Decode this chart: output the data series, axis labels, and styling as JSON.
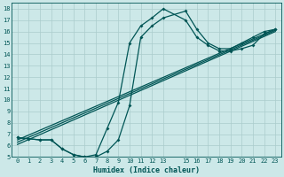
{
  "xlabel": "Humidex (Indice chaleur)",
  "bg_color": "#cce8e8",
  "grid_color": "#aacccc",
  "line_color": "#005555",
  "xlim": [
    -0.5,
    23.5
  ],
  "ylim": [
    5,
    18.5
  ],
  "xticks": [
    0,
    1,
    2,
    3,
    4,
    5,
    6,
    7,
    8,
    9,
    10,
    11,
    12,
    13,
    15,
    16,
    17,
    18,
    19,
    20,
    21,
    22,
    23
  ],
  "yticks": [
    5,
    6,
    7,
    8,
    9,
    10,
    11,
    12,
    13,
    14,
    15,
    16,
    17,
    18
  ],
  "curve1_x": [
    0,
    1,
    2,
    3,
    4,
    5,
    6,
    7,
    8,
    9,
    10,
    11,
    12,
    13,
    15,
    16,
    17,
    18,
    19,
    20,
    21,
    22,
    23
  ],
  "curve1_y": [
    6.7,
    6.6,
    6.5,
    6.5,
    5.7,
    5.2,
    5.0,
    5.0,
    5.5,
    6.5,
    9.5,
    15.5,
    16.5,
    17.2,
    17.8,
    16.2,
    15.0,
    14.5,
    14.5,
    15.0,
    15.5,
    16.0,
    16.2
  ],
  "curve2_x": [
    0,
    1,
    2,
    3,
    4,
    5,
    6,
    7,
    8,
    9,
    10,
    11,
    12,
    13,
    15,
    16,
    17,
    18,
    19,
    20,
    21,
    22,
    23
  ],
  "curve2_y": [
    6.7,
    6.6,
    6.5,
    6.5,
    5.7,
    5.2,
    5.0,
    5.2,
    7.5,
    9.8,
    15.0,
    16.5,
    17.2,
    18.0,
    17.0,
    15.5,
    14.8,
    14.3,
    14.3,
    14.5,
    14.8,
    15.8,
    16.2
  ],
  "line1_x": [
    0,
    23
  ],
  "line1_y": [
    6.5,
    16.2
  ],
  "line2_x": [
    0,
    23
  ],
  "line2_y": [
    6.3,
    16.1
  ],
  "line3_x": [
    0,
    23
  ],
  "line3_y": [
    6.1,
    16.0
  ]
}
